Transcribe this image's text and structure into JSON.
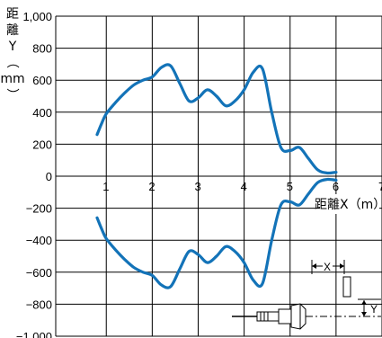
{
  "chart_data": {
    "type": "line",
    "title": "",
    "xlabel": "距離X（m）",
    "ylabel": [
      "距",
      "離",
      "Y",
      "（",
      "mm",
      "）"
    ],
    "xlim": [
      -0.1,
      7
    ],
    "ylim": [
      -1000,
      1000
    ],
    "x_ticks": [
      "1",
      "2",
      "3",
      "4",
      "5",
      "6",
      "7"
    ],
    "y_ticks": [
      "1,000",
      "800",
      "600",
      "400",
      "200",
      "0",
      "−200",
      "−400",
      "−600",
      "−800",
      "−1,000"
    ],
    "grid": true,
    "series": [
      {
        "values_x": [
          0.8,
          0.9,
          1.0,
          1.2,
          1.4,
          1.6,
          1.8,
          2.0,
          2.2,
          2.4,
          2.6,
          2.8,
          3.0,
          3.2,
          3.4,
          3.6,
          3.8,
          4.0,
          4.2,
          4.4,
          4.6,
          4.8,
          5.0,
          5.2,
          5.4,
          5.6,
          5.8,
          6.0
        ],
        "values_y": [
          260,
          330,
          390,
          460,
          520,
          570,
          600,
          620,
          680,
          690,
          580,
          470,
          490,
          540,
          500,
          440,
          470,
          540,
          650,
          670,
          400,
          180,
          160,
          180,
          110,
          40,
          20,
          25
        ]
      },
      {
        "values_x": [
          0.8,
          0.9,
          1.0,
          1.2,
          1.4,
          1.6,
          1.8,
          2.0,
          2.2,
          2.4,
          2.6,
          2.8,
          3.0,
          3.2,
          3.4,
          3.6,
          3.8,
          4.0,
          4.2,
          4.4,
          4.6,
          4.8,
          5.0,
          5.2,
          5.4,
          5.6,
          5.8,
          6.0
        ],
        "values_y": [
          -260,
          -330,
          -390,
          -460,
          -520,
          -570,
          -600,
          -620,
          -680,
          -690,
          -580,
          -470,
          -490,
          -540,
          -500,
          -440,
          -470,
          -540,
          -650,
          -670,
          -400,
          -180,
          -160,
          -180,
          -110,
          -40,
          -20,
          -25
        ]
      }
    ],
    "inset_labels": {
      "x": "X",
      "y": "Y"
    },
    "colors": {
      "curve": "#1373b8"
    }
  }
}
